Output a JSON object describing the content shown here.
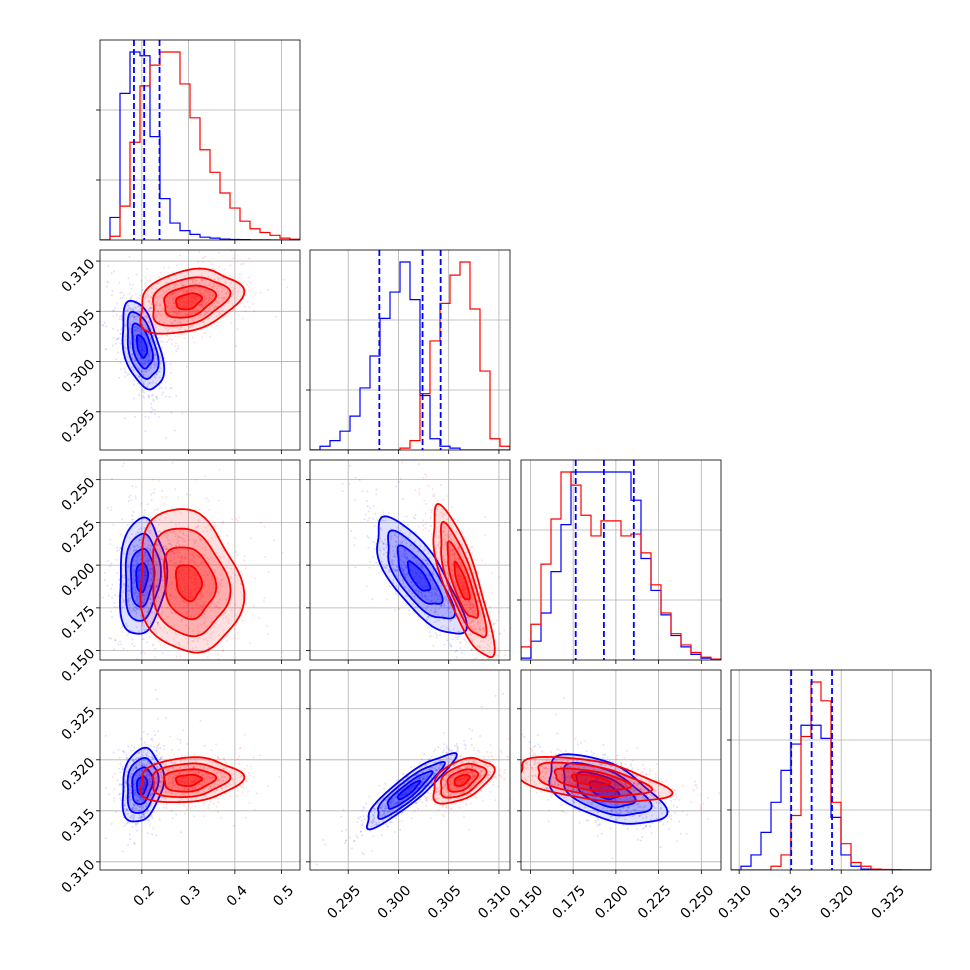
{
  "chart_data": {
    "type": "corner",
    "colors": {
      "blue": "#0000ff",
      "red": "#ff0000",
      "grid": "#b0b0b0",
      "axis": "#000000"
    },
    "params": [
      {
        "range": [
          0.11,
          0.54
        ],
        "ticks": [
          "0.2",
          "0.3",
          "0.4",
          "0.5"
        ],
        "tick_values": [
          0.2,
          0.3,
          0.4,
          0.5
        ]
      },
      {
        "range": [
          0.2912,
          0.3111
        ],
        "ticks": [
          "0.295",
          "0.300",
          "0.305",
          "0.310"
        ],
        "tick_values": [
          0.295,
          0.3,
          0.305,
          0.31
        ]
      },
      {
        "range": [
          0.1445,
          0.2615
        ],
        "ticks": [
          "0.150",
          "0.175",
          "0.200",
          "0.225",
          "0.250"
        ],
        "tick_values": [
          0.15,
          0.175,
          0.2,
          0.225,
          0.25
        ]
      },
      {
        "range": [
          0.3092,
          0.3288
        ],
        "ticks": [
          "0.310",
          "0.315",
          "0.320",
          "0.325"
        ],
        "tick_values": [
          0.31,
          0.315,
          0.32,
          0.325
        ]
      }
    ],
    "histograms": [
      {
        "param": 0,
        "bins": 20,
        "blue": [
          0,
          0.12,
          0.78,
          1.0,
          0.98,
          0.55,
          0.22,
          0.09,
          0.05,
          0.03,
          0.015,
          0.01,
          0.005,
          0.003,
          0.002,
          0.001,
          0.001,
          0,
          0,
          0
        ],
        "red": [
          0,
          0.02,
          0.18,
          0.52,
          0.82,
          0.93,
          1.0,
          1.0,
          0.83,
          0.65,
          0.48,
          0.36,
          0.25,
          0.17,
          0.1,
          0.06,
          0.04,
          0.025,
          0.01,
          0.004
        ],
        "quantiles": [
          0.183,
          0.205,
          0.238
        ]
      },
      {
        "param": 1,
        "bins": 20,
        "blue": [
          0,
          0.02,
          0.05,
          0.1,
          0.18,
          0.33,
          0.5,
          0.7,
          0.84,
          1.0,
          0.8,
          0.29,
          0.06,
          0.02,
          0.01,
          0,
          0,
          0,
          0,
          0
        ],
        "red": [
          0,
          0,
          0,
          0,
          0,
          0,
          0,
          0,
          0,
          0.01,
          0.05,
          0.3,
          0.58,
          0.78,
          0.93,
          1.0,
          0.75,
          0.42,
          0.06,
          0.02
        ],
        "quantiles": [
          0.2981,
          0.3024,
          0.3042
        ]
      },
      {
        "param": 2,
        "bins": 20,
        "blue": [
          0.01,
          0.1,
          0.25,
          0.47,
          0.72,
          1.0,
          1.0,
          1.0,
          1.0,
          1.0,
          1.0,
          0.85,
          0.54,
          0.37,
          0.24,
          0.13,
          0.07,
          0.03,
          0.01,
          0.005
        ],
        "red": [
          0.07,
          0.19,
          0.51,
          0.75,
          1.0,
          0.93,
          0.77,
          0.66,
          0.74,
          0.74,
          0.66,
          0.67,
          0.57,
          0.4,
          0.25,
          0.14,
          0.08,
          0.04,
          0.015,
          0.005
        ],
        "quantiles": [
          0.1765,
          0.193,
          0.2105
        ]
      },
      {
        "param": 3,
        "bins": 20,
        "blue": [
          0,
          0.02,
          0.08,
          0.2,
          0.36,
          0.53,
          0.67,
          0.77,
          0.77,
          0.7,
          0.28,
          0.08,
          0.02,
          0.005,
          0,
          0,
          0,
          0,
          0,
          0
        ],
        "red": [
          0,
          0,
          0,
          0,
          0.02,
          0.08,
          0.29,
          0.71,
          1.0,
          0.9,
          0.36,
          0.14,
          0.04,
          0.02,
          0.005,
          0.003,
          0.002,
          0.001,
          0,
          0
        ],
        "quantiles": [
          0.3151,
          0.3171,
          0.3191
        ]
      }
    ],
    "pairs": [
      {
        "x": 0,
        "y": 1,
        "blue": {
          "mean": [
            0.2,
            0.3015
          ],
          "sd": [
            0.022,
            0.0022
          ],
          "rho": -0.45
        },
        "red": {
          "mean": [
            0.3,
            0.306
          ],
          "sd": [
            0.055,
            0.0016
          ],
          "rho": 0.3
        }
      },
      {
        "x": 0,
        "y": 2,
        "blue": {
          "mean": [
            0.2,
            0.193
          ],
          "sd": [
            0.025,
            0.017
          ],
          "rho": 0.1
        },
        "red": {
          "mean": [
            0.3,
            0.19
          ],
          "sd": [
            0.055,
            0.021
          ],
          "rho": -0.15
        }
      },
      {
        "x": 1,
        "y": 2,
        "blue": {
          "mean": [
            0.302,
            0.193
          ],
          "sd": [
            0.0022,
            0.017
          ],
          "rho": -0.75
        },
        "red": {
          "mean": [
            0.3063,
            0.19
          ],
          "sd": [
            0.0015,
            0.022
          ],
          "rho": -0.8
        }
      },
      {
        "x": 0,
        "y": 3,
        "blue": {
          "mean": [
            0.2,
            0.3175
          ],
          "sd": [
            0.022,
            0.0018
          ],
          "rho": 0.2
        },
        "red": {
          "mean": [
            0.3,
            0.318
          ],
          "sd": [
            0.055,
            0.0011
          ],
          "rho": 0.15
        }
      },
      {
        "x": 1,
        "y": 3,
        "blue": {
          "mean": [
            0.301,
            0.317
          ],
          "sd": [
            0.0022,
            0.0018
          ],
          "rho": 0.9
        },
        "red": {
          "mean": [
            0.3063,
            0.318
          ],
          "sd": [
            0.0015,
            0.0011
          ],
          "rho": 0.45
        }
      },
      {
        "x": 2,
        "y": 3,
        "blue": {
          "mean": [
            0.193,
            0.317
          ],
          "sd": [
            0.017,
            0.0017
          ],
          "rho": -0.55
        },
        "red": {
          "mean": [
            0.185,
            0.318
          ],
          "sd": [
            0.022,
            0.0011
          ],
          "rho": -0.5
        }
      }
    ],
    "contour_levels_sigma": [
      0.5,
      1.0,
      1.5,
      2.0
    ]
  }
}
